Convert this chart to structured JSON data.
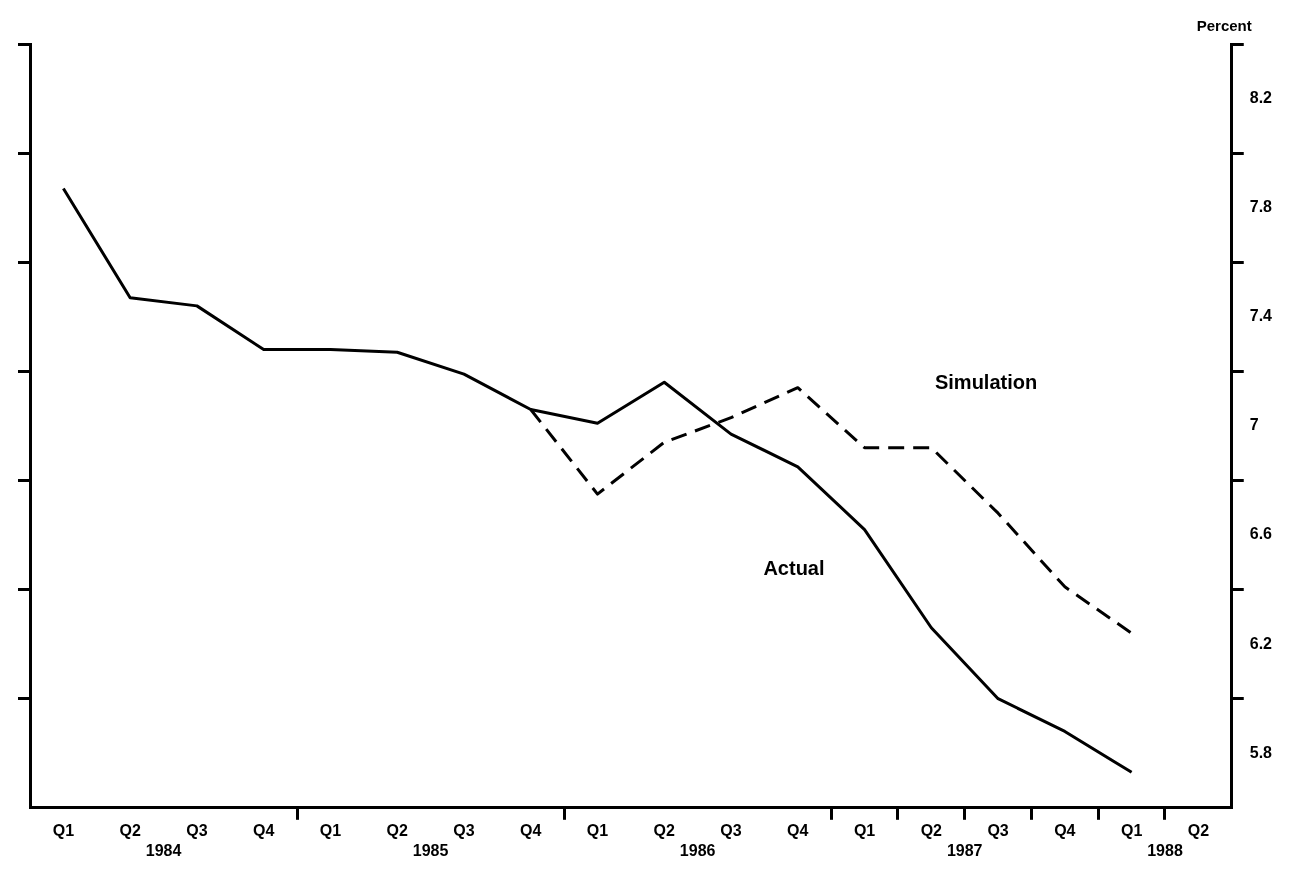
{
  "chart_data": {
    "type": "line",
    "ylabel": "Percent",
    "categories": [
      "Q1",
      "Q2",
      "Q3",
      "Q4",
      "Q1",
      "Q2",
      "Q3",
      "Q4",
      "Q1",
      "Q2",
      "Q3",
      "Q4",
      "Q1",
      "Q2",
      "Q3",
      "Q4",
      "Q1",
      "Q2"
    ],
    "series": [
      {
        "name": "Actual",
        "color": "#000000",
        "line_style": "solid",
        "values": [
          7.87,
          7.47,
          7.44,
          7.28,
          7.28,
          7.27,
          7.19,
          7.06,
          7.01,
          7.16,
          6.97,
          6.85,
          6.62,
          6.26,
          6.0,
          5.88,
          5.73,
          null
        ]
      },
      {
        "name": "Simulation",
        "color": "#000000",
        "line_style": "dashed",
        "values": [
          null,
          null,
          null,
          null,
          null,
          null,
          null,
          7.06,
          6.75,
          6.94,
          7.03,
          7.14,
          6.92,
          6.92,
          6.68,
          6.41,
          6.24,
          null
        ]
      }
    ],
    "ylim": [
      5.6,
      8.4
    ],
    "yticks": [
      5.8,
      {
        "value": 6.0,
        "label": null
      },
      6.2,
      {
        "value": 6.4,
        "label": null
      },
      6.6,
      {
        "value": 6.8,
        "label": null
      },
      7,
      {
        "value": 7.2,
        "label": null
      },
      7.4,
      {
        "value": 7.6,
        "label": null
      },
      7.8,
      {
        "value": 8.0,
        "label": null
      },
      8.2,
      {
        "value": 8.4,
        "label": null
      }
    ],
    "annotations": [
      "1984",
      "1985",
      "1986",
      "1987",
      "1988"
    ],
    "grid": false,
    "legend": false,
    "marker": "none"
  }
}
